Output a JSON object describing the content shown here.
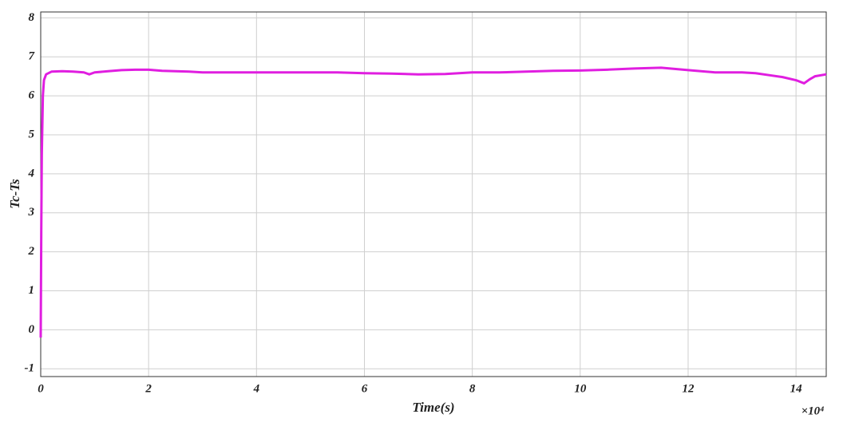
{
  "chart_data": {
    "type": "line",
    "xlabel": "Time(s)",
    "ylabel": "Tc-Ts",
    "x_multiplier": "×10⁴",
    "xlim": [
      0,
      14.56
    ],
    "ylim": [
      -1.2,
      8.15
    ],
    "xticks": [
      0,
      2,
      4,
      6,
      8,
      10,
      12,
      14
    ],
    "yticks": [
      -1,
      0,
      1,
      2,
      3,
      4,
      5,
      6,
      7,
      8
    ],
    "grid": true,
    "series": [
      {
        "color": "#e01ee0",
        "x": [
          0,
          0.01,
          0.02,
          0.04,
          0.06,
          0.1,
          0.2,
          0.4,
          0.6,
          0.8,
          0.9,
          1.0,
          1.25,
          1.5,
          1.75,
          2.0,
          2.25,
          2.5,
          2.75,
          3.0,
          3.5,
          4.0,
          4.5,
          5.0,
          5.5,
          6.0,
          6.5,
          7.0,
          7.5,
          8.0,
          8.5,
          9.0,
          9.5,
          10.0,
          10.5,
          11.0,
          11.5,
          12.0,
          12.5,
          13.0,
          13.25,
          13.5,
          13.75,
          14.0,
          14.15,
          14.25,
          14.35,
          14.56
        ],
        "values": [
          -0.2,
          2.5,
          4.5,
          6.0,
          6.4,
          6.55,
          6.62,
          6.63,
          6.62,
          6.6,
          6.55,
          6.6,
          6.63,
          6.66,
          6.67,
          6.67,
          6.64,
          6.63,
          6.62,
          6.6,
          6.6,
          6.6,
          6.6,
          6.6,
          6.6,
          6.58,
          6.57,
          6.55,
          6.56,
          6.6,
          6.6,
          6.62,
          6.64,
          6.65,
          6.67,
          6.7,
          6.72,
          6.66,
          6.6,
          6.6,
          6.58,
          6.53,
          6.48,
          6.4,
          6.32,
          6.42,
          6.5,
          6.55
        ]
      }
    ]
  }
}
